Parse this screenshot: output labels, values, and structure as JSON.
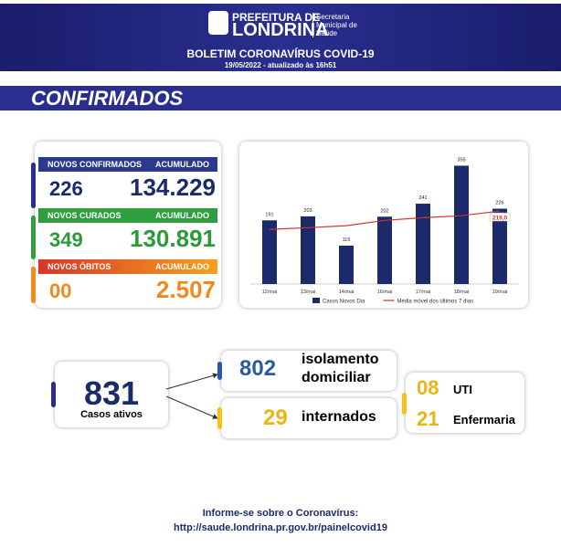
{
  "header": {
    "prefeitura": "PREFEITURA DE",
    "city": "LONDRINA",
    "secretaria": "Secretaria Municipal de Saúde",
    "bulletin": "BOLETIM CORONAVÍRUS COVID-19",
    "date": "19/05/2022 - atualizado às 16h51"
  },
  "section": "CONFIRMADOS",
  "stats": [
    {
      "label": "NOVOS CONFIRMADOS",
      "acc_label": "ACUMULADO",
      "new": "226",
      "total": "134.229"
    },
    {
      "label": "NOVOS CURADOS",
      "acc_label": "ACUMULADO",
      "new": "349",
      "total": "130.891"
    },
    {
      "label": "NOVOS ÓBITOS",
      "acc_label": "ACUMULADO",
      "new": "00",
      "total": "2.507"
    }
  ],
  "chart_data": {
    "type": "bar",
    "categories": [
      "12/mai",
      "13/mai",
      "14/mai",
      "16/mai",
      "17/mai",
      "18/mai",
      "19/mai"
    ],
    "series": [
      {
        "name": "Casos Novos Dia",
        "color": "#1b2a6b",
        "values": [
          191,
          203,
          115,
          202,
          241,
          355,
          226
        ]
      },
      {
        "name": "Média móvel dos últimos 7 dias",
        "type": "line",
        "color": "#d0342c",
        "values": [
          164,
          169,
          175,
          191,
          199,
          205,
          219
        ],
        "value_labels": [
          null,
          null,
          null,
          null,
          null,
          null,
          "219,0"
        ]
      }
    ],
    "ylim": [
      0,
      400
    ]
  },
  "active": {
    "value": "831",
    "label": "Casos ativos"
  },
  "isolation": {
    "value": "802",
    "label": "isolamento domiciliar"
  },
  "hospital": {
    "value": "29",
    "label": "internados"
  },
  "beds": [
    {
      "value": "08",
      "label": "UTI"
    },
    {
      "value": "21",
      "label": "Enfermaria"
    }
  ],
  "footer": {
    "info": "Informe-se sobre o Coronavírus:",
    "url": "http://saude.londrina.pr.gov.br/painelcovid19"
  }
}
